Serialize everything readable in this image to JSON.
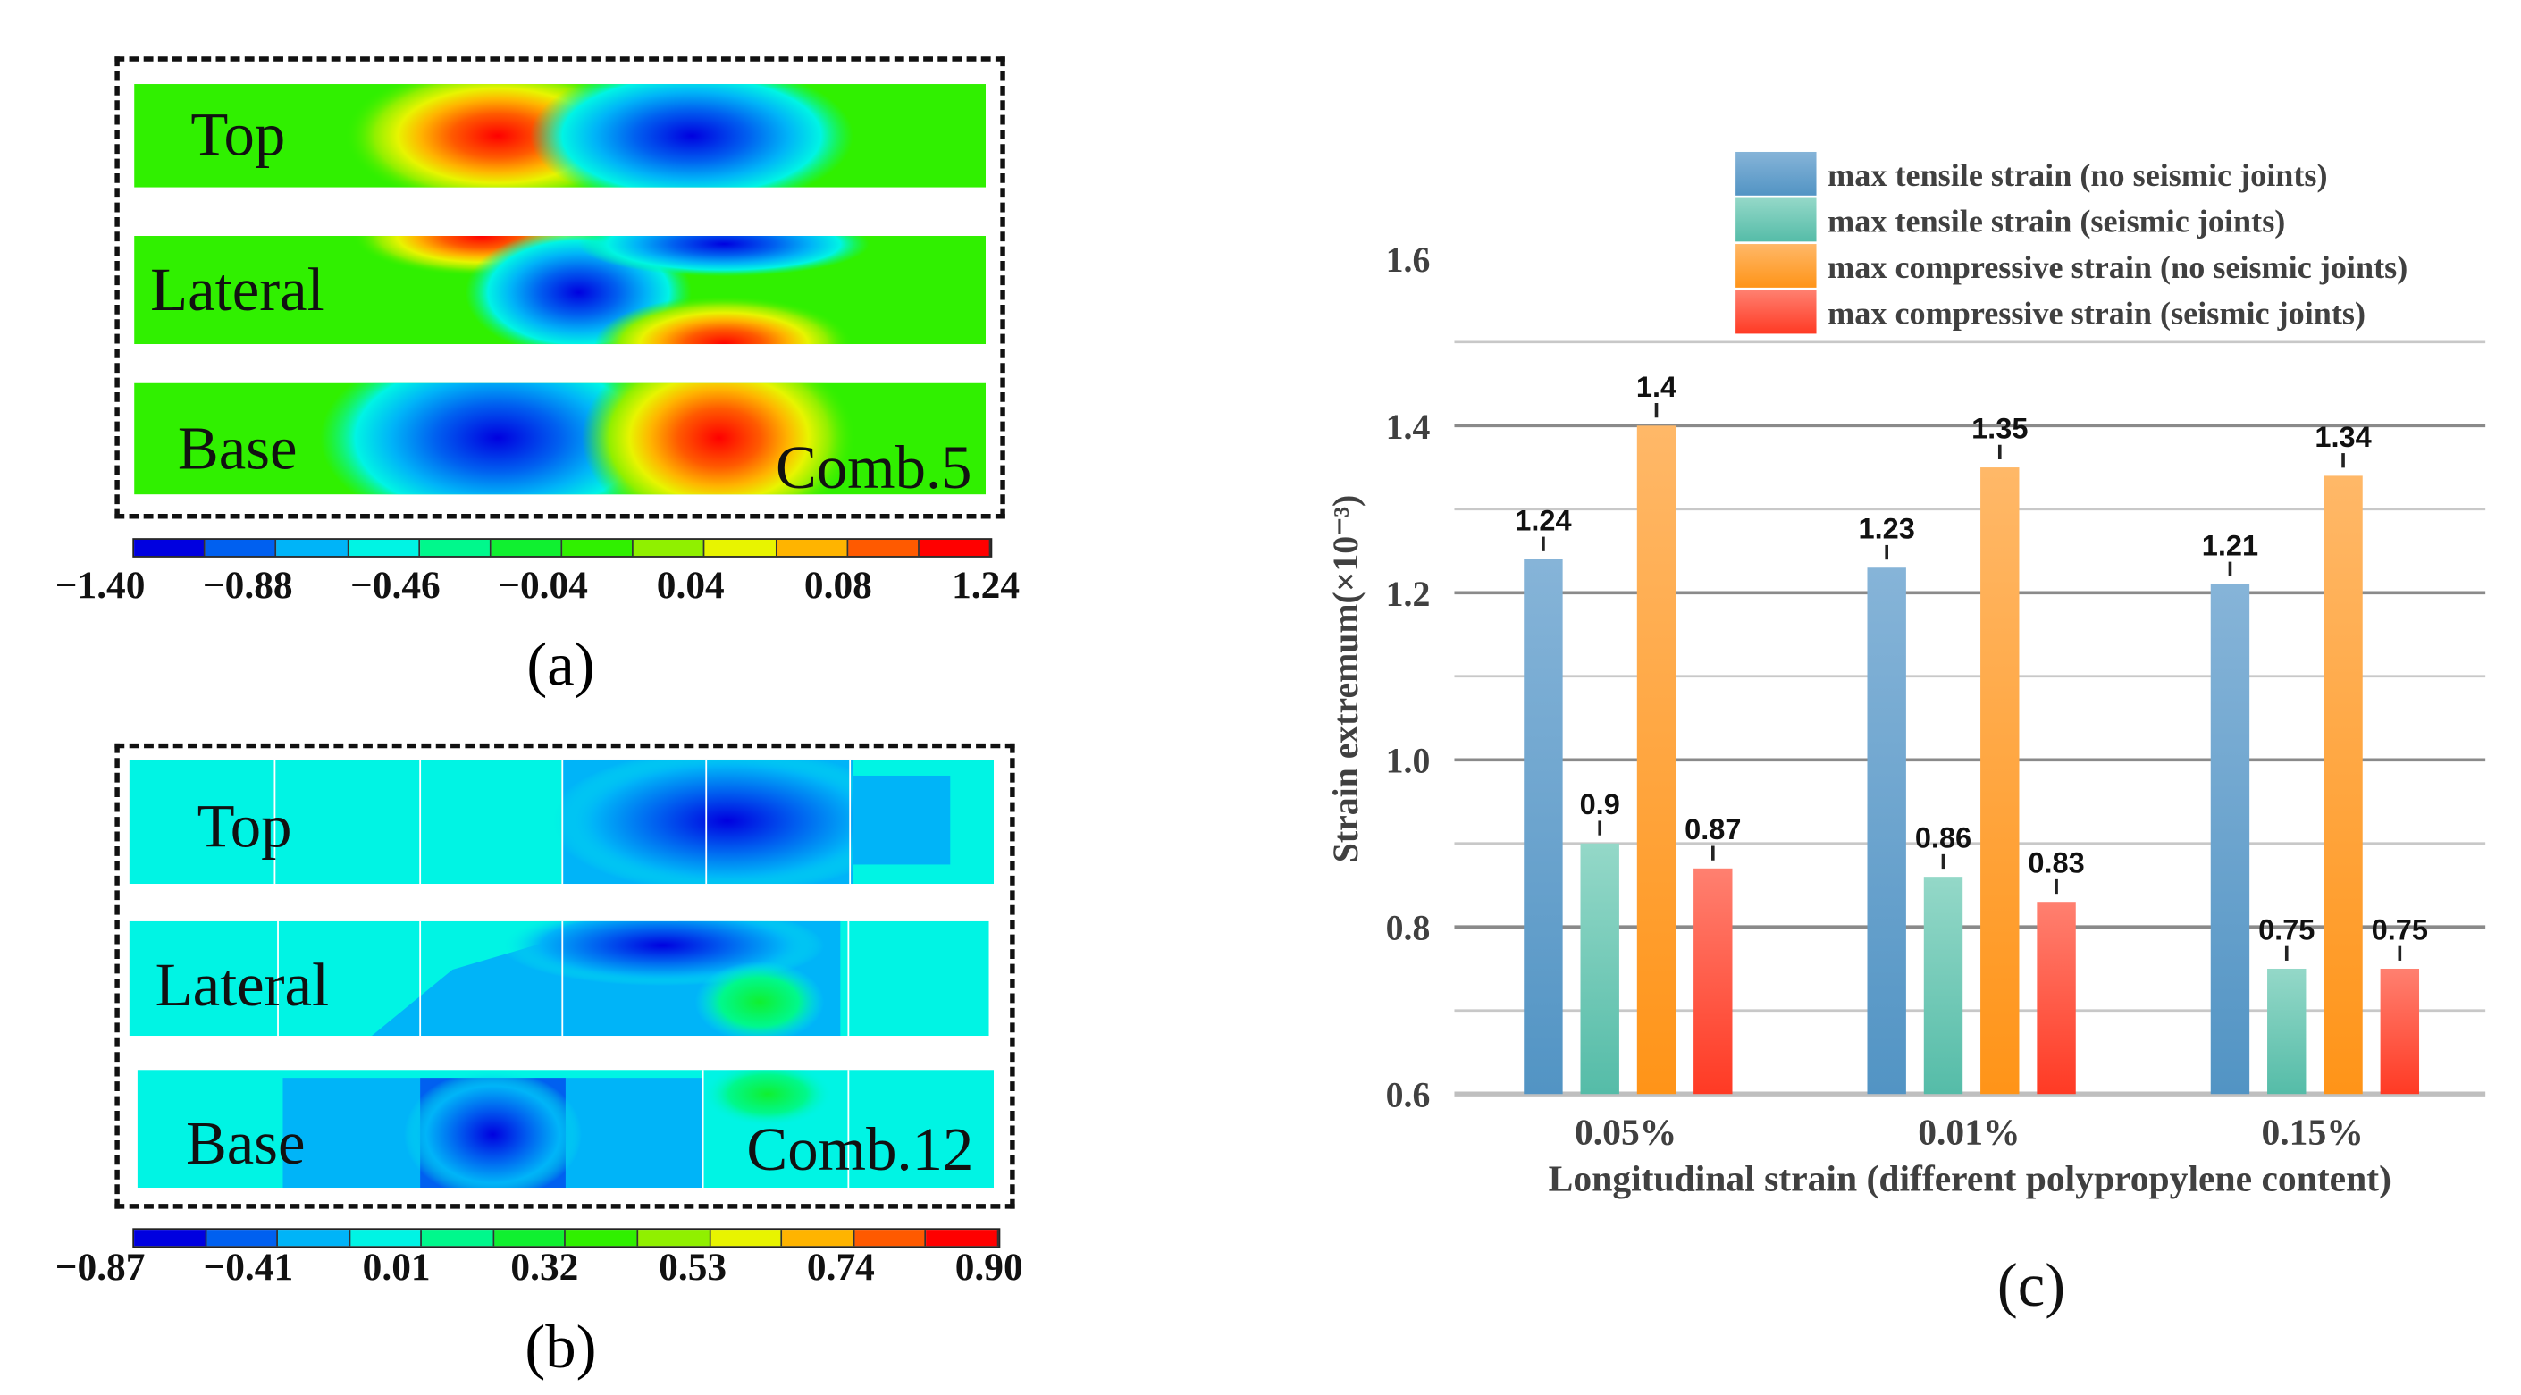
{
  "panel_a": {
    "strip_labels": [
      "Top",
      "Lateral",
      "Base"
    ],
    "combo": "Comb.5",
    "colorbar_ticks": [
      "−1.40",
      "−0.88",
      "−0.46",
      "−0.04",
      "0.04",
      "0.08",
      "1.24"
    ],
    "colorbar_colors": [
      "#0000e0",
      "#0060f0",
      "#00b4f8",
      "#00f4e4",
      "#00f88c",
      "#10f030",
      "#30f000",
      "#90f000",
      "#e8f400",
      "#ffb400",
      "#ff5a00",
      "#ff0000"
    ],
    "caption": "(a)"
  },
  "panel_b": {
    "strip_labels": [
      "Top",
      "Lateral",
      "Base"
    ],
    "combo": "Comb.12",
    "colorbar_ticks": [
      "−0.87",
      "−0.41",
      "0.01",
      "0.32",
      "0.53",
      "0.74",
      "0.90"
    ],
    "colorbar_colors": [
      "#0000e0",
      "#0060f0",
      "#00b4f8",
      "#00f4e4",
      "#00f88c",
      "#10f030",
      "#30f000",
      "#90f000",
      "#e8f400",
      "#ffb400",
      "#ff5a00",
      "#ff0000"
    ],
    "caption": "(b)"
  },
  "chart_data": {
    "type": "bar",
    "categories": [
      "0.05%",
      "0.01%",
      "0.15%"
    ],
    "series": [
      {
        "name": "max tensile strain (no seismic joints)",
        "values": [
          1.24,
          1.23,
          1.21
        ],
        "color_top": "#86b4d8",
        "color_bottom": "#5294c4"
      },
      {
        "name": "max tensile strain (seismic joints)",
        "values": [
          0.9,
          0.86,
          0.75
        ],
        "color_top": "#94d8c8",
        "color_bottom": "#55bca8"
      },
      {
        "name": "max compressive strain (no seismic joints)",
        "values": [
          1.4,
          1.35,
          1.34
        ],
        "color_top": "#ffb868",
        "color_bottom": "#ff9418"
      },
      {
        "name": "max compressive strain (seismic joints)",
        "values": [
          0.87,
          0.83,
          0.75
        ],
        "color_top": "#ff8070",
        "color_bottom": "#ff3a24"
      }
    ],
    "data_labels": [
      [
        "1.24",
        "1.23",
        "1.21"
      ],
      [
        "0.9",
        "0.86",
        "0.75"
      ],
      [
        "1.4",
        "1.35",
        "1.34"
      ],
      [
        "0.87",
        "0.83",
        "0.75"
      ]
    ],
    "xlabel": "Longitudinal strain (different polypropylene content)",
    "ylabel": "Strain extremum(×10⁻³)",
    "yticks": [
      "0.6",
      "0.8",
      "1.0",
      "1.2",
      "1.4",
      "1.6"
    ],
    "ylim": [
      0.6,
      1.6
    ],
    "grid": true,
    "legend": "top-right",
    "caption": "(c)"
  }
}
